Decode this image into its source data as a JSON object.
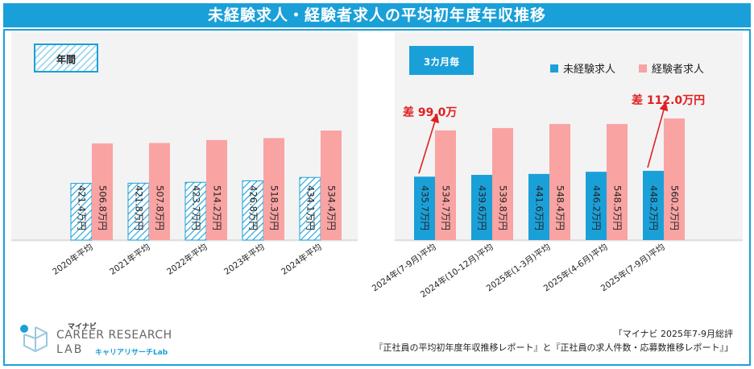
{
  "header": {
    "title": "未経験求人・経験者求人の平均初年度年収推移"
  },
  "left_tag": "年間",
  "right_tag": "3カ月毎",
  "legend": {
    "inexperienced": "未経験求人",
    "experienced": "経験者求人"
  },
  "colors": {
    "inexperienced": "#1aa0d8",
    "experienced": "#f9a3a3",
    "hatch_bg": "#9fd6ee",
    "arrow": "#e02020"
  },
  "source": {
    "line1": "「マイナビ 2025年7-9月総評",
    "line2": "『正社員の平均初年度年収推移レポート』と『正社員の求人件数・応募数推移レポート』」"
  },
  "logo": {
    "brand": "マイナビ",
    "line1": "CAREER RESEARCH",
    "line2": "LAB",
    "sub": "キャリアリサーチLab"
  },
  "chart_data": [
    {
      "type": "bar",
      "categories": [
        "2020年平均",
        "2021年平均",
        "2022年平均",
        "2023年平均",
        "2024年平均"
      ],
      "series": [
        {
          "name": "未経験求人",
          "values": [
            421.4,
            421.8,
            423.7,
            426.8,
            434.1
          ],
          "labels": [
            "421.4万円",
            "421.8万円",
            "423.7万円",
            "426.8万円",
            "434.1万円"
          ]
        },
        {
          "name": "経験者求人",
          "values": [
            506.8,
            507.8,
            514.2,
            518.3,
            534.4
          ],
          "labels": [
            "506.8万円",
            "507.8万円",
            "514.2万円",
            "518.3万円",
            "534.4万円"
          ]
        }
      ]
    },
    {
      "type": "bar",
      "categories": [
        "2024年(7-9月)平均",
        "2024年(10-12月)平均",
        "2025年(1-3月)平均",
        "2025年(4-6月)平均",
        "2025年(7-9月)平均"
      ],
      "series": [
        {
          "name": "未経験求人",
          "values": [
            435.7,
            439.6,
            441.6,
            446.2,
            448.2
          ],
          "labels": [
            "435.7万円",
            "439.6万円",
            "441.6万円",
            "446.2万円",
            "448.2万円"
          ]
        },
        {
          "name": "経験者求人",
          "values": [
            534.7,
            539.8,
            548.4,
            548.5,
            560.2
          ],
          "labels": [
            "534.7万円",
            "539.8万円",
            "548.4万円",
            "548.5万円",
            "560.2万円"
          ]
        }
      ],
      "annotations": [
        {
          "category": "2024年(7-9月)平均",
          "text": "差 99.0万"
        },
        {
          "category": "2025年(7-9月)平均",
          "text": "差 112.0万円"
        }
      ]
    }
  ]
}
